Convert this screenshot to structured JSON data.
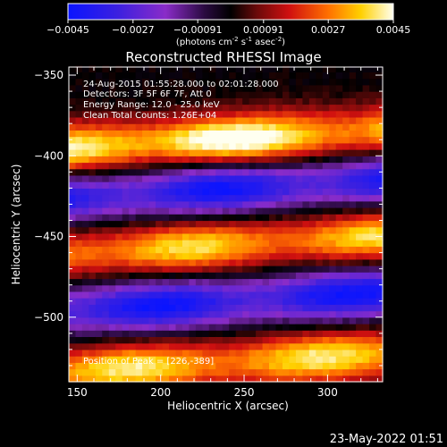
{
  "chart_data": {
    "type": "heatmap",
    "title": "Reconstructed RHESSI Image",
    "xlabel": "Heliocentric X (arcsec)",
    "ylabel": "Heliocentric Y (arcsec)",
    "xlim": [
      145,
      333
    ],
    "ylim": [
      -540,
      -345
    ],
    "x_ticks": [
      150,
      200,
      250,
      300
    ],
    "y_ticks": [
      -350,
      -400,
      -450,
      -500
    ],
    "colorbar": {
      "min": -0.0045,
      "max": 0.0045,
      "ticks": [
        "-0.0045",
        "-0.0027",
        "-0.00091",
        "0.00091",
        "0.0027",
        "0.0045"
      ],
      "label_main": "(photons cm",
      "label_exp1": "-2",
      "label_mid": " s",
      "label_exp2": "-1",
      "label_end": " asec",
      "label_exp3": "-2",
      "label_close": ")"
    },
    "annotations": [
      "24-Aug-2015 01:55:28.000 to 02:01:28.000",
      "Detectors: 3F 5F 6F 7F, Att 0",
      "Energy Range: 12.0 - 25.0 keV",
      "Clean    Total Counts: 1.26E+04"
    ],
    "peak_label": "Position of Peak = [226,-389]",
    "peak_position": [
      226,
      -389
    ],
    "bands": [
      {
        "y_center": -390,
        "peak_value": 0.0045,
        "kind": "positive"
      },
      {
        "y_center": -420,
        "peak_value": -0.0045,
        "kind": "negative"
      },
      {
        "y_center": -455,
        "peak_value": 0.004,
        "kind": "positive"
      },
      {
        "y_center": -490,
        "peak_value": -0.0045,
        "kind": "negative"
      },
      {
        "y_center": -528,
        "peak_value": 0.0042,
        "kind": "positive"
      }
    ],
    "grid": false
  },
  "timestamp": "23-May-2022 01:51"
}
